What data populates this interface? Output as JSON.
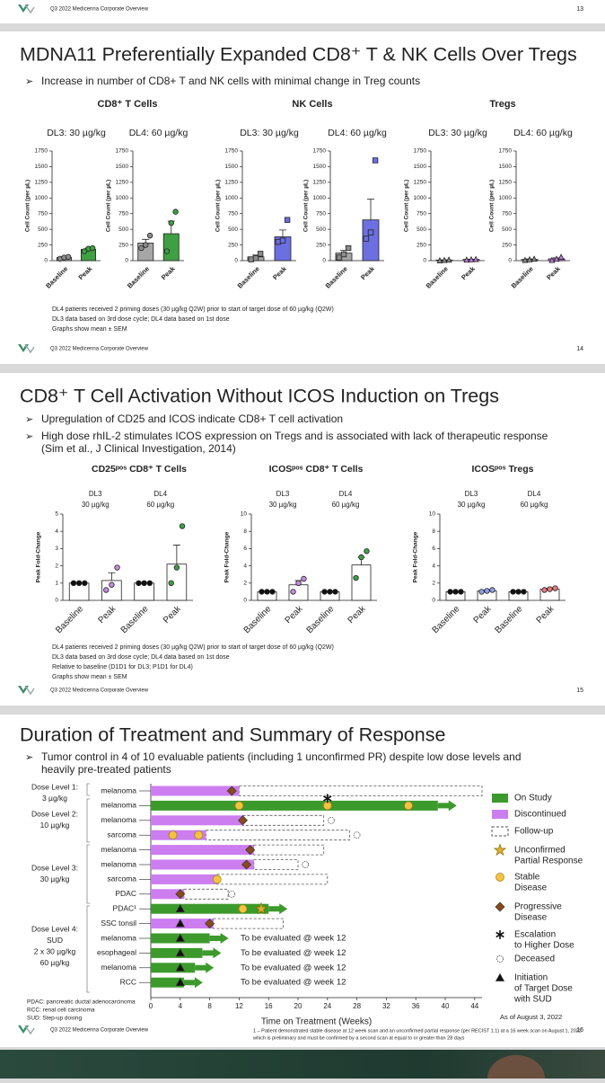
{
  "top": {
    "footer": "Q3 2022 Medicenna Corporate Overview",
    "page": "13"
  },
  "slide1": {
    "title": "MDNA11 Preferentially Expanded CD8⁺ T & NK Cells Over Tregs",
    "bullets": [
      [
        "Increase in number of CD8+ T and NK cells with minimal change in Treg counts"
      ]
    ],
    "panels": [
      {
        "title": "CD8⁺ T Cells",
        "marker": "circle",
        "charts": [
          {
            "type": "bar",
            "dose": "DL3:  30 µg/kg",
            "ylabel": "Cell Count (per µL)",
            "categories": [
              "Baseline",
              "Peak"
            ],
            "values": [
              50,
              180
            ],
            "errors": [
              10,
              20
            ],
            "points": [
              [
                30,
                50,
                60
              ],
              [
                150,
                190,
                200
              ]
            ],
            "bar_colors": [
              "#a6a6a6",
              "#3ea043"
            ],
            "point_colors": [
              "#8c8c8c",
              "#3ea043"
            ],
            "ylim": [
              0,
              1750
            ],
            "yticks": [
              0,
              250,
              500,
              750,
              1000,
              1250,
              1500,
              1750
            ]
          },
          {
            "type": "bar",
            "dose": "DL4:  60 µg/kg",
            "ylabel": "Cell Count (per µL)",
            "categories": [
              "Baseline",
              "Peak"
            ],
            "values": [
              280,
              430
            ],
            "errors": [
              60,
              200
            ],
            "points": [
              [
                200,
                250,
                400
              ],
              [
                150,
                600,
                780
              ]
            ],
            "bar_colors": [
              "#a6a6a6",
              "#3ea043"
            ],
            "point_colors": [
              "#8c8c8c",
              "#3ea043"
            ],
            "ylim": [
              0,
              1750
            ],
            "yticks": [
              0,
              250,
              500,
              750,
              1000,
              1250,
              1500,
              1750
            ]
          }
        ]
      },
      {
        "title": "NK Cells",
        "marker": "square",
        "charts": [
          {
            "type": "bar",
            "dose": "DL3:  30 µg/kg",
            "ylabel": "Cell Count (per µL)",
            "categories": [
              "Baseline",
              "Peak"
            ],
            "values": [
              60,
              380
            ],
            "errors": [
              30,
              110
            ],
            "points": [
              [
                20,
                40,
                110
              ],
              [
                300,
                320,
                650
              ]
            ],
            "bar_colors": [
              "#a6a6a6",
              "#6b6fe0"
            ],
            "point_colors": [
              "#8c8c8c",
              "#6b6fe0"
            ],
            "ylim": [
              0,
              1750
            ],
            "yticks": [
              0,
              250,
              500,
              750,
              1000,
              1250,
              1500,
              1750
            ]
          },
          {
            "type": "bar",
            "dose": "DL4:  60 µg/kg",
            "ylabel": "Cell Count (per µL)",
            "categories": [
              "Baseline",
              "Peak"
            ],
            "values": [
              120,
              650
            ],
            "errors": [
              45,
              330
            ],
            "points": [
              [
                50,
                100,
                200
              ],
              [
                350,
                450,
                1600
              ]
            ],
            "bar_colors": [
              "#a6a6a6",
              "#6b6fe0"
            ],
            "point_colors": [
              "#8c8c8c",
              "#6b6fe0"
            ],
            "ylim": [
              0,
              1750
            ],
            "yticks": [
              0,
              250,
              500,
              750,
              1000,
              1250,
              1500,
              1750
            ]
          }
        ]
      },
      {
        "title": "Tregs",
        "marker": "triangle",
        "charts": [
          {
            "type": "bar",
            "dose": "DL3:  30 µg/kg",
            "ylabel": "Cell Count (per µL)",
            "categories": [
              "Baseline",
              "Peak"
            ],
            "values": [
              10,
              20
            ],
            "errors": [
              3,
              3
            ],
            "points": [
              [
                5,
                10,
                15
              ],
              [
                15,
                20,
                25
              ]
            ],
            "bar_colors": [
              "#a6a6a6",
              "#c07ad8"
            ],
            "point_colors": [
              "#8c8c8c",
              "#c07ad8"
            ],
            "ylim": [
              0,
              1750
            ],
            "yticks": [
              0,
              250,
              500,
              750,
              1000,
              1250,
              1500,
              1750
            ]
          },
          {
            "type": "bar",
            "dose": "DL4:  60 µg/kg",
            "ylabel": "Cell Count (per µL)",
            "categories": [
              "Baseline",
              "Peak"
            ],
            "values": [
              20,
              30
            ],
            "errors": [
              6,
              15
            ],
            "points": [
              [
                10,
                20,
                30
              ],
              [
                10,
                30,
                60
              ]
            ],
            "bar_colors": [
              "#a6a6a6",
              "#c07ad8"
            ],
            "point_colors": [
              "#8c8c8c",
              "#c07ad8"
            ],
            "ylim": [
              0,
              1750
            ],
            "yticks": [
              0,
              250,
              500,
              750,
              1000,
              1250,
              1500,
              1750
            ]
          }
        ]
      }
    ],
    "notes": [
      "DL4 patients received 2 priming doses (30 µg/kg Q2W) prior to start of target dose of 60 µg/kg (Q2W)",
      "DL3 data based on 3rd dose cycle; DL4 data based on 1st dose",
      "Graphs show mean ± SEM"
    ],
    "footer": "Q3 2022 Medicenna Corporate Overview",
    "page": "14"
  },
  "slide2": {
    "title": "CD8⁺ T Cell Activation Without ICOS Induction on Tregs",
    "bullets": [
      [
        "Upregulation of CD25 and ICOS indicate CD8+ T cell activation"
      ],
      [
        "High dose rhIL-2 stimulates ICOS expression on Tregs and is associated with lack of therapeutic response",
        "(Sim et al., J Clinical Investigation, 2014)"
      ]
    ],
    "panels": [
      {
        "title": "CD25ᵖᵒˢ CD8⁺ T Cells",
        "marker": "circle",
        "charts": [
          {
            "type": "bar",
            "ylabel": "Peak Fold-Change",
            "groups": [
              [
                "DL3",
                "30 µg/kg"
              ],
              [
                "DL4",
                "60 µg/kg"
              ]
            ],
            "categories": [
              "Baseline",
              "Peak",
              "Baseline",
              "Peak"
            ],
            "values": [
              1,
              1.15,
              1,
              2.1
            ],
            "errors": [
              0,
              0.45,
              0,
              1.1
            ],
            "points": [
              [
                1,
                1,
                1
              ],
              [
                0.6,
                0.9,
                1.9
              ],
              [
                1,
                1,
                1
              ],
              [
                1.0,
                1.9,
                4.3
              ]
            ],
            "bar_colors": [
              "#ffffff",
              "#ffffff",
              "#ffffff",
              "#ffffff"
            ],
            "point_colors": [
              "#111111",
              "#c58be0",
              "#111111",
              "#3ea043"
            ],
            "ylim": [
              0,
              5
            ],
            "yticks": [
              0,
              1,
              2,
              3,
              4,
              5
            ]
          }
        ]
      },
      {
        "title": "ICOSᵖᵒˢ CD8⁺ T Cells",
        "marker": "circle",
        "charts": [
          {
            "type": "bar",
            "ylabel": "Peak Fold-Change",
            "groups": [
              [
                "DL3",
                "30 µg/kg"
              ],
              [
                "DL4",
                "60 µg/kg"
              ]
            ],
            "categories": [
              "Baseline",
              "Peak",
              "Baseline",
              "Peak"
            ],
            "values": [
              1,
              1.8,
              1,
              4.1
            ],
            "errors": [
              0,
              0.5,
              0,
              0.9
            ],
            "points": [
              [
                1,
                1,
                1
              ],
              [
                1.0,
                2.0,
                2.5
              ],
              [
                1,
                1,
                1
              ],
              [
                2.6,
                5.0,
                5.7
              ]
            ],
            "bar_colors": [
              "#ffffff",
              "#ffffff",
              "#ffffff",
              "#ffffff"
            ],
            "point_colors": [
              "#111111",
              "#c58be0",
              "#111111",
              "#3ea043"
            ],
            "ylim": [
              0,
              10
            ],
            "yticks": [
              0,
              2,
              4,
              6,
              8,
              10
            ]
          }
        ]
      },
      {
        "title": "ICOSᵖᵒˢ Tregs",
        "marker": "circle",
        "charts": [
          {
            "type": "bar",
            "ylabel": "Peak Fold-Change",
            "groups": [
              [
                "DL3",
                "30 µg/kg"
              ],
              [
                "DL4",
                "60 µg/kg"
              ]
            ],
            "categories": [
              "Baseline",
              "Peak",
              "Baseline",
              "Peak"
            ],
            "values": [
              1,
              1.1,
              1,
              1.3
            ],
            "errors": [
              0,
              0.1,
              0,
              0.1
            ],
            "points": [
              [
                1,
                1,
                1
              ],
              [
                1.0,
                1.1,
                1.2
              ],
              [
                1,
                1,
                1
              ],
              [
                1.2,
                1.3,
                1.4
              ]
            ],
            "bar_colors": [
              "#ffffff",
              "#ffffff",
              "#ffffff",
              "#ffffff"
            ],
            "point_colors": [
              "#111111",
              "#8fa0e8",
              "#111111",
              "#e57a7a"
            ],
            "ylim": [
              0,
              10
            ],
            "yticks": [
              0,
              2,
              4,
              6,
              8,
              10
            ]
          }
        ]
      }
    ],
    "notes": [
      "DL4 patients received 2 priming doses (30 µg/kg Q2W) prior to start of target dose of 60 µg/kg (Q2W)",
      "DL3 data based on 3rd dose cycle; DL4 data based on 1st dose",
      "Relative to baseline (D1D1 for DL3; P1D1 for DL4)",
      "Graphs show mean ± SEM"
    ],
    "footer": "Q3 2022 Medicenna Corporate Overview",
    "page": "15"
  },
  "slide3": {
    "title": "Duration of Treatment and Summary of Response",
    "bullets": [
      [
        "Tumor control in 4 of 10 evaluable patients (including 1 unconfirmed PR) despite low dose levels and",
        "heavily pre-treated patients"
      ]
    ],
    "swimmer": {
      "type": "swimmer",
      "xlabel": "Time on Treatment (Weeks)",
      "xlim": [
        0,
        45
      ],
      "xticks": [
        0,
        4,
        8,
        12,
        16,
        20,
        24,
        28,
        32,
        36,
        40,
        44
      ],
      "dose_groups": [
        [
          "Dose Level 1:",
          "3 µg/kg"
        ],
        [
          "Dose Level 2:",
          "10 µg/kg"
        ],
        [
          "Dose Level 3:",
          "30 µg/kg"
        ],
        [
          "Dose Level 4:",
          "SUD",
          "2 x 30 µg/kg",
          "60 µg/kg"
        ]
      ],
      "rows": [
        {
          "label": "melanoma",
          "bar_color": "#cc7df0",
          "bar_end": 12,
          "follow_up_end": 45,
          "markers": {
            "progressive": [
              11
            ]
          }
        },
        {
          "label": "melanoma",
          "bar_color": "#3c9a2c",
          "bar_end": 39,
          "ongoing": true,
          "markers": {
            "stable": [
              12,
              24,
              35
            ],
            "escalation": [
              24
            ]
          }
        },
        {
          "label": "melanoma",
          "bar_color": "#cc7df0",
          "bar_end": 12.5,
          "follow_up_end": 23.5,
          "markers": {
            "progressive": [
              12.5
            ],
            "deceased": [
              24.5
            ]
          }
        },
        {
          "label": "sarcoma",
          "bar_color": "#cc7df0",
          "bar_end": 7.5,
          "follow_up_end": 27,
          "markers": {
            "stable": [
              3,
              6.5
            ],
            "deceased": [
              28
            ]
          }
        },
        {
          "label": "melanoma",
          "bar_color": "#cc7df0",
          "bar_end": 14,
          "follow_up_end": 23.5,
          "markers": {
            "progressive": [
              13.5
            ]
          }
        },
        {
          "label": "melanoma",
          "bar_color": "#cc7df0",
          "bar_end": 14,
          "follow_up_end": 20,
          "markers": {
            "progressive": [
              13
            ],
            "deceased": [
              21
            ]
          }
        },
        {
          "label": "sarcoma",
          "bar_color": "#cc7df0",
          "bar_end": 9,
          "follow_up_end": 24,
          "markers": {
            "stable": [
              9
            ]
          }
        },
        {
          "label": "PDAC",
          "bar_color": "#cc7df0",
          "bar_end": 4.5,
          "follow_up_end": 10.5,
          "markers": {
            "progressive": [
              4
            ],
            "deceased": [
              11
            ]
          }
        },
        {
          "label": "PDAC¹",
          "bar_color": "#3c9a2c",
          "bar_end": 16,
          "ongoing": true,
          "markers": {
            "target_dose": [
              4
            ],
            "stable": [
              12.5
            ],
            "unconfirmed_pr": [
              15
            ]
          }
        },
        {
          "label": "SSC tonsil",
          "bar_color": "#cc7df0",
          "bar_end": 8.5,
          "follow_up_end": 18,
          "markers": {
            "target_dose": [
              4
            ],
            "progressive": [
              8
            ]
          }
        },
        {
          "label": "melanoma",
          "bar_color": "#3c9a2c",
          "bar_end": 8,
          "ongoing": true,
          "markers": {
            "target_dose": [
              4
            ]
          },
          "note": "To be evaluated @ week 12"
        },
        {
          "label": "esophageal",
          "bar_color": "#3c9a2c",
          "bar_end": 7,
          "ongoing": true,
          "markers": {
            "target_dose": [
              4
            ]
          },
          "note": "To be evaluated @ week 12"
        },
        {
          "label": "melanoma",
          "bar_color": "#3c9a2c",
          "bar_end": 6,
          "ongoing": true,
          "markers": {
            "target_dose": [
              4
            ]
          },
          "note": "To be evaluated @ week 12"
        },
        {
          "label": "RCC",
          "bar_color": "#3c9a2c",
          "bar_end": 4.5,
          "ongoing": true,
          "markers": {
            "target_dose": [
              4
            ]
          },
          "note": "To be evaluated @ week 12"
        }
      ],
      "legend": {
        "on_study": {
          "label": [
            "On Study"
          ],
          "color": "#3c9a2c"
        },
        "discontinued": {
          "label": [
            "Discontinued"
          ],
          "color": "#cc7df0"
        },
        "follow_up": {
          "label": [
            "Follow-up"
          ],
          "color": "#555555"
        },
        "unconfirmed_pr": {
          "label": [
            "Unconfirmed",
            "Partial Response"
          ],
          "color": "#e0b030"
        },
        "stable": {
          "label": [
            "Stable",
            "Disease"
          ],
          "color": "#f5c242"
        },
        "progressive": {
          "label": [
            "Progressive",
            "Disease"
          ],
          "color": "#8b4a1c"
        },
        "escalation": {
          "label": [
            "Escalation",
            "to Higher Dose"
          ],
          "color": "#111111"
        },
        "deceased": {
          "label": [
            "Deceased"
          ],
          "color": "#333333"
        },
        "target_dose": {
          "label": [
            "Initiation",
            "of Target Dose",
            "with SUD"
          ],
          "color": "#111111"
        }
      },
      "as_of": "As of August 3, 2022"
    },
    "abbreviations": [
      "PDAC: pancreatic ductal adenocarcinoma",
      "RCC: renal cell carcinoma",
      "SUD: Step-up dosing"
    ],
    "footnote": [
      "1 – Patient demonstrated stable disease at 12 week scan and an unconfirmed partial response (per RECIST 1.1) at a 16 week scan on August 1, 2022",
      "which is preliminary and must be confirmed by a second scan at equal to or greater than 28 days"
    ],
    "footer": "Q3 2022 Medicenna Corporate Overview",
    "page": "16"
  }
}
